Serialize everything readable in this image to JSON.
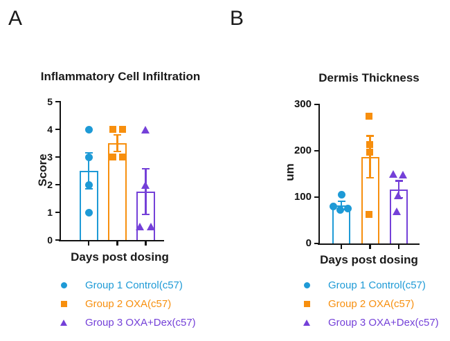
{
  "panels": [
    {
      "label": "A"
    },
    {
      "label": "B"
    }
  ],
  "legend": {
    "items": [
      {
        "label": "Group 1 Control(c57)",
        "marker": "circle",
        "color": "#1E9AD6"
      },
      {
        "label": "Group 2 OXA(c57)",
        "marker": "square",
        "color": "#F78F0E"
      },
      {
        "label": "Group 3 OXA+Dex(c57)",
        "marker": "triangle",
        "color": "#7440D8"
      }
    ]
  },
  "chart_data": [
    {
      "type": "bar",
      "title": "Inflammatory Cell Infiltration",
      "xlabel": "Days post dosing",
      "ylabel": "Score",
      "ylim": [
        0,
        5
      ],
      "yticks": [
        0,
        1,
        2,
        3,
        4,
        5
      ],
      "categories": [
        "Group 1 Control(c57)",
        "Group 2 OXA(c57)",
        "Group 3 OXA+Dex(c57)"
      ],
      "series": [
        {
          "name": "Group 1 Control(c57)",
          "marker": "circle",
          "color": "#1E9AD6",
          "mean": 2.5,
          "sem": 0.65,
          "points": [
            {
              "v": 4,
              "dx": 0
            },
            {
              "v": 3,
              "dx": 0
            },
            {
              "v": 2,
              "dx": 0
            },
            {
              "v": 1,
              "dx": 0
            }
          ]
        },
        {
          "name": "Group 2 OXA(c57)",
          "marker": "square",
          "color": "#F78F0E",
          "mean": 3.5,
          "sem": 0.29,
          "points": [
            {
              "v": 4,
              "dx": -7
            },
            {
              "v": 4,
              "dx": 7
            },
            {
              "v": 3,
              "dx": -7
            },
            {
              "v": 3,
              "dx": 7
            }
          ]
        },
        {
          "name": "Group 3 OXA+Dex(c57)",
          "marker": "triangle",
          "color": "#7440D8",
          "mean": 1.75,
          "sem": 0.83,
          "points": [
            {
              "v": 4,
              "dx": 0
            },
            {
              "v": 2,
              "dx": 0
            },
            {
              "v": 0.5,
              "dx": -8
            },
            {
              "v": 0.5,
              "dx": 8
            }
          ]
        }
      ]
    },
    {
      "type": "bar",
      "title": "Dermis Thickness",
      "xlabel": "Days post dosing",
      "ylabel": "um",
      "ylim": [
        0,
        300
      ],
      "yticks": [
        0,
        100,
        200,
        300
      ],
      "categories": [
        "Group 1 Control(c57)",
        "Group 2 OXA(c57)",
        "Group 3 OXA+Dex(c57)"
      ],
      "series": [
        {
          "name": "Group 1 Control(c57)",
          "marker": "circle",
          "color": "#1E9AD6",
          "mean": 82,
          "sem": 9,
          "points": [
            {
              "v": 105,
              "dx": 0
            },
            {
              "v": 80,
              "dx": -12
            },
            {
              "v": 72,
              "dx": -2
            },
            {
              "v": 75,
              "dx": 9
            }
          ]
        },
        {
          "name": "Group 2 OXA(c57)",
          "marker": "square",
          "color": "#F78F0E",
          "mean": 187,
          "sem": 45,
          "points": [
            {
              "v": 275,
              "dx": -2
            },
            {
              "v": 213,
              "dx": -1
            },
            {
              "v": 197,
              "dx": -1
            },
            {
              "v": 63,
              "dx": -2
            }
          ]
        },
        {
          "name": "Group 3 OXA+Dex(c57)",
          "marker": "triangle",
          "color": "#7440D8",
          "mean": 117,
          "sem": 18,
          "points": [
            {
              "v": 150,
              "dx": -8
            },
            {
              "v": 148,
              "dx": 6
            },
            {
              "v": 103,
              "dx": -1
            },
            {
              "v": 70,
              "dx": -3
            }
          ]
        }
      ]
    }
  ]
}
